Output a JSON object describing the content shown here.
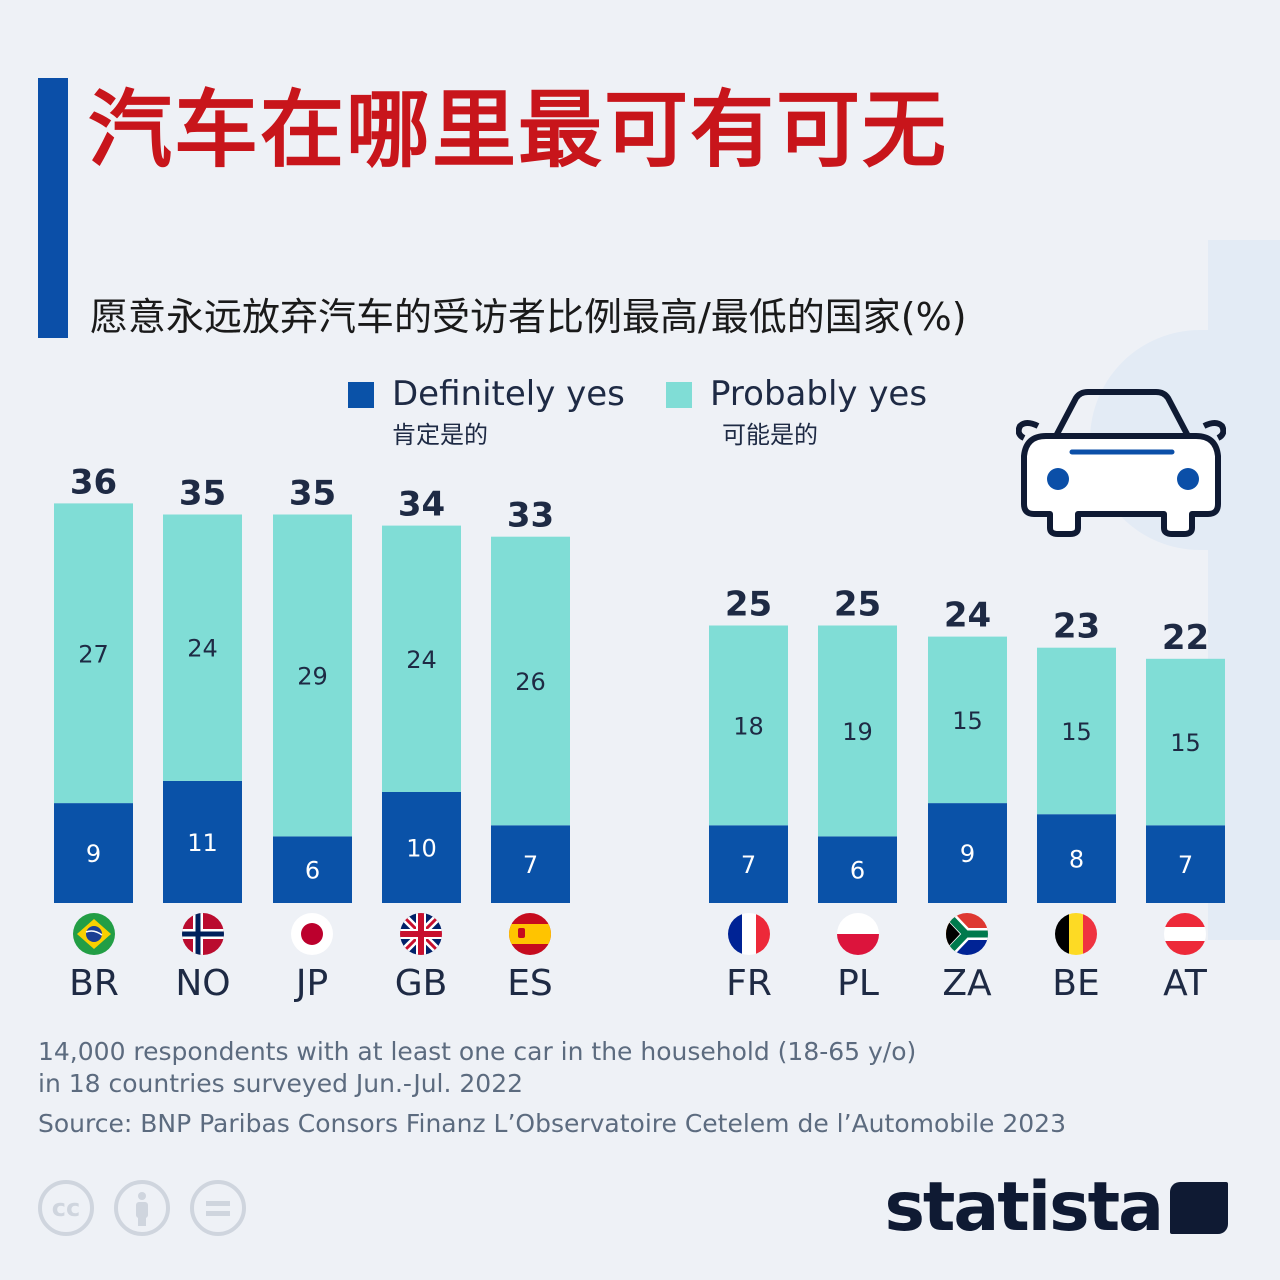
{
  "header": {
    "title": "汽车在哪里最可有可无",
    "subtitle": "愿意永远放弃汽车的受访者比例最高/最低的国家(%)"
  },
  "legend": [
    {
      "label": "Definitely yes",
      "sub": "肯定是的",
      "color": "#0a52a8"
    },
    {
      "label": "Probably yes",
      "sub": "可能是的",
      "color": "#80ddd6"
    }
  ],
  "chart_data": {
    "type": "bar",
    "stacked": true,
    "categories": [
      "BR",
      "NO",
      "JP",
      "GB",
      "ES",
      "FR",
      "PL",
      "ZA",
      "BE",
      "AT"
    ],
    "totals": [
      36,
      35,
      35,
      34,
      33,
      25,
      25,
      24,
      23,
      22
    ],
    "series": [
      {
        "name": "Definitely yes",
        "values": [
          9,
          11,
          6,
          10,
          7,
          7,
          6,
          9,
          8,
          7
        ],
        "color": "#0a52a8"
      },
      {
        "name": "Probably yes",
        "values": [
          27,
          24,
          29,
          24,
          26,
          18,
          19,
          15,
          15,
          15
        ],
        "color": "#80ddd6"
      }
    ],
    "ylim": [
      0,
      36
    ],
    "grid": false,
    "legend_position": "top"
  },
  "footer": {
    "note_line1": "14,000 respondents with at least one car in the household (18-65 y/o)",
    "note_line2": "in 18 countries surveyed Jun.-Jul. 2022",
    "source": "Source: BNP Paribas Consors Finanz L’Observatoire Cetelem de l’Automobile 2023",
    "cc_icons": [
      "cc-icon",
      "by-icon",
      "nd-icon"
    ],
    "brand": "statista"
  }
}
